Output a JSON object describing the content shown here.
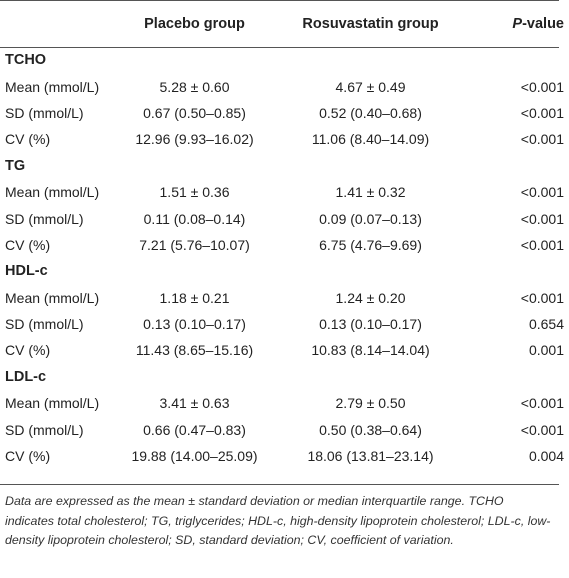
{
  "header": {
    "col1": "",
    "col2": "Placebo group",
    "col3": "Rosuvastatin group",
    "col4_italic": "P",
    "col4_rest": "-value"
  },
  "sections": [
    {
      "title": "TCHO",
      "rows": [
        {
          "label": "Mean (mmol/L)",
          "placebo": "5.28 ± 0.60",
          "rosuvastatin": "4.67 ± 0.49",
          "p": "<0.001"
        },
        {
          "label": "SD (mmol/L)",
          "placebo": "0.67 (0.50–0.85)",
          "rosuvastatin": "0.52 (0.40–0.68)",
          "p": "<0.001"
        },
        {
          "label": "CV (%)",
          "placebo": "12.96 (9.93–16.02)",
          "rosuvastatin": "11.06 (8.40–14.09)",
          "p": "<0.001"
        }
      ]
    },
    {
      "title": "TG",
      "rows": [
        {
          "label": "Mean (mmol/L)",
          "placebo": "1.51 ± 0.36",
          "rosuvastatin": "1.41 ± 0.32",
          "p": "<0.001"
        },
        {
          "label": "SD (mmol/L)",
          "placebo": "0.11 (0.08–0.14)",
          "rosuvastatin": "0.09 (0.07–0.13)",
          "p": "<0.001"
        },
        {
          "label": "CV (%)",
          "placebo": "7.21 (5.76–10.07)",
          "rosuvastatin": "6.75 (4.76–9.69)",
          "p": "<0.001"
        }
      ]
    },
    {
      "title": "HDL-c",
      "rows": [
        {
          "label": "Mean (mmol/L)",
          "placebo": "1.18 ± 0.21",
          "rosuvastatin": "1.24 ± 0.20",
          "p": "<0.001"
        },
        {
          "label": "SD (mmol/L)",
          "placebo": "0.13 (0.10–0.17)",
          "rosuvastatin": "0.13 (0.10–0.17)",
          "p": "0.654"
        },
        {
          "label": "CV (%)",
          "placebo": "11.43 (8.65–15.16)",
          "rosuvastatin": "10.83 (8.14–14.04)",
          "p": "0.001"
        }
      ]
    },
    {
      "title": "LDL-c",
      "rows": [
        {
          "label": "Mean (mmol/L)",
          "placebo": "3.41 ± 0.63",
          "rosuvastatin": "2.79 ± 0.50",
          "p": "<0.001"
        },
        {
          "label": "SD (mmol/L)",
          "placebo": "0.66 (0.47–0.83)",
          "rosuvastatin": "0.50 (0.38–0.64)",
          "p": "<0.001"
        },
        {
          "label": "CV (%)",
          "placebo": "19.88 (14.00–25.09)",
          "rosuvastatin": "18.06 (13.81–23.14)",
          "p": "0.004"
        }
      ]
    }
  ],
  "footnote": "Data are expressed as the mean ± standard deviation or median interquartile range. TCHO indicates total cholesterol; TG, triglycerides; HDL-c, high-density lipoprotein cholesterol; LDL-c, low-density lipoprotein cholesterol; SD, standard deviation; CV, coefficient of variation."
}
